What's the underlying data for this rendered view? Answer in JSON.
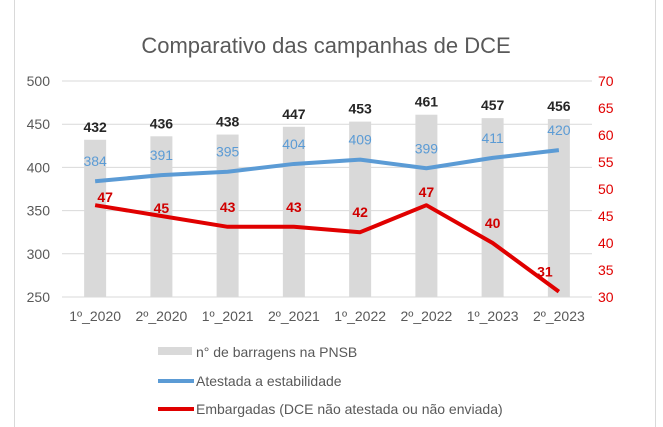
{
  "chart_data": {
    "type": "bar+line",
    "title": "Comparativo das campanhas de DCE",
    "categories": [
      "1º_2020",
      "2º_2020",
      "1º_2021",
      "2º_2021",
      "1º_2022",
      "2º_2022",
      "1º_2023",
      "2º_2023"
    ],
    "y_left": {
      "range": [
        250,
        500
      ],
      "ticks": [
        "250",
        "300",
        "350",
        "400",
        "450",
        "500"
      ]
    },
    "y_right": {
      "range": [
        30,
        70
      ],
      "ticks": [
        "30",
        "35",
        "40",
        "45",
        "50",
        "55",
        "60",
        "65",
        "70"
      ],
      "color": "#e00000"
    },
    "grid": true,
    "legend_position": "bottom",
    "series": [
      {
        "name": "n° de barragens na PNSB",
        "type": "bar",
        "axis": "left",
        "color": "#d9d9d9",
        "label_color": "#262626",
        "values": [
          432,
          436,
          438,
          447,
          453,
          461,
          457,
          456
        ]
      },
      {
        "name": "Atestada a estabilidade",
        "type": "line",
        "axis": "left",
        "color": "#5b9bd5",
        "label_color": "#5b9bd5",
        "values": [
          384,
          391,
          395,
          404,
          409,
          399,
          411,
          420
        ]
      },
      {
        "name": "Embargadas (DCE não atestada ou não enviada)",
        "type": "line",
        "axis": "right",
        "color": "#e00000",
        "label_color": "#d00000",
        "values": [
          47,
          45,
          43,
          43,
          42,
          47,
          40,
          31
        ]
      }
    ]
  }
}
